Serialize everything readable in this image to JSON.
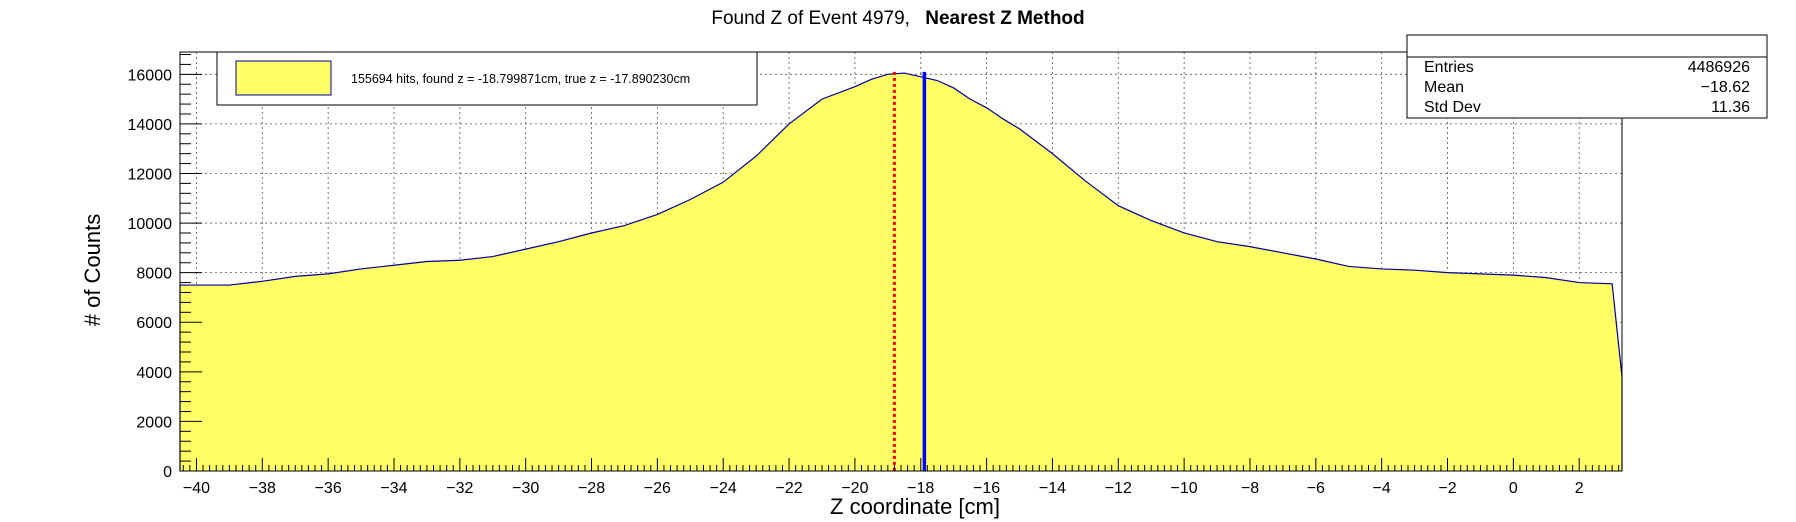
{
  "chart_data": {
    "type": "area",
    "title": {
      "main": "Found Z of Event 4979,",
      "bold": "Nearest Z Method"
    },
    "xlabel": "Z coordinate [cm]",
    "ylabel": "# of Counts",
    "xlim": [
      -40.5,
      3.3
    ],
    "ylim": [
      0,
      16900
    ],
    "xticks": [
      -40,
      -38,
      -36,
      -34,
      -32,
      -30,
      -28,
      -26,
      -24,
      -22,
      -20,
      -18,
      -16,
      -14,
      -12,
      -10,
      -8,
      -6,
      -4,
      -2,
      0,
      2
    ],
    "yticks": [
      0,
      2000,
      4000,
      6000,
      8000,
      10000,
      12000,
      14000,
      16000
    ],
    "grid": true,
    "fill_color": "#ffff66",
    "line_color": "#000099",
    "legend": {
      "placement": "top-left",
      "entries": [
        {
          "label": "155694 hits, found z = -18.799871cm, true z = -17.890230cm",
          "color": "#ffff66"
        }
      ]
    },
    "stats_box": {
      "placement": "top-right",
      "rows": [
        {
          "label": "Entries",
          "value": "4486926"
        },
        {
          "label": "Mean",
          "value": "−18.62"
        },
        {
          "label": "Std Dev",
          "value": "11.36"
        }
      ]
    },
    "markers": [
      {
        "name": "found z",
        "x": -18.799871,
        "color": "#ff0000",
        "style": "dotted"
      },
      {
        "name": "true z",
        "x": -17.89023,
        "color": "#0000ff",
        "style": "solid"
      }
    ],
    "series": [
      {
        "x": [
          -40.5,
          -40,
          -39,
          -38,
          -37,
          -36,
          -35,
          -34,
          -33,
          -32,
          -31,
          -30,
          -29,
          -28,
          -27,
          -26,
          -25,
          -24,
          -23,
          -22,
          -21,
          -20,
          -19.5,
          -19,
          -18.5,
          -18,
          -17.5,
          -17,
          -16.5,
          -16,
          -15.5,
          -15,
          -14.5,
          -14,
          -13,
          -12,
          -11,
          -10,
          -9,
          -8,
          -7,
          -6,
          -5,
          -4,
          -3,
          -2,
          -1,
          0,
          1,
          2,
          3,
          3.3
        ],
        "y": [
          7500,
          7500,
          7500,
          7650,
          7850,
          7950,
          8150,
          8300,
          8450,
          8500,
          8650,
          8950,
          9250,
          9600,
          9900,
          10350,
          10950,
          11650,
          12700,
          14000,
          15000,
          15500,
          15800,
          16000,
          16050,
          15900,
          15750,
          15450,
          15000,
          14650,
          14200,
          13800,
          13300,
          12800,
          11700,
          10700,
          10100,
          9600,
          9250,
          9050,
          8800,
          8550,
          8250,
          8150,
          8100,
          8000,
          7950,
          7900,
          7800,
          7600,
          7550,
          3800
        ]
      }
    ]
  }
}
